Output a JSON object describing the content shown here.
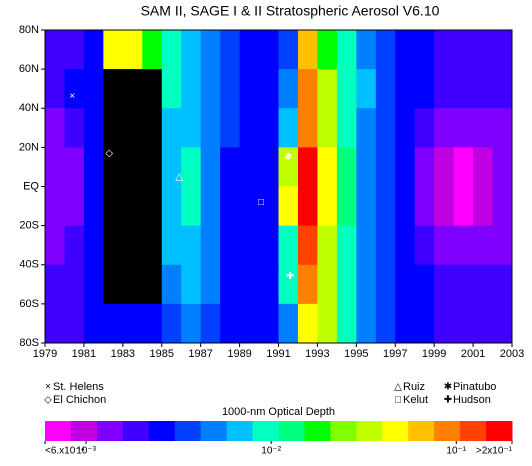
{
  "chart_data": {
    "type": "heatmap",
    "title": "SAM II, SAGE I & II Stratospheric Aerosol V6.10",
    "x": [
      1979,
      1980,
      1981,
      1982,
      1983,
      1984,
      1985,
      1986,
      1987,
      1988,
      1989,
      1990,
      1991,
      1992,
      1993,
      1994,
      1995,
      1996,
      1997,
      1998,
      1999,
      2000,
      2001,
      2002
    ],
    "y": [
      70,
      50,
      30,
      10,
      -10,
      -30,
      -50,
      -70
    ],
    "z": [
      [
        0.002,
        0.002,
        0.003,
        0.04,
        0.05,
        0.02,
        0.008,
        0.006,
        0.005,
        0.004,
        0.003,
        0.003,
        0.004,
        0.06,
        0.02,
        0.008,
        0.005,
        0.004,
        0.003,
        0.003,
        0.002,
        0.002,
        0.002,
        0.002
      ],
      [
        0.002,
        0.0025,
        0.003,
        null,
        null,
        null,
        0.008,
        0.007,
        0.005,
        0.004,
        0.003,
        0.003,
        0.005,
        0.08,
        0.03,
        0.01,
        0.006,
        0.004,
        0.003,
        0.0025,
        0.002,
        0.002,
        0.002,
        0.002
      ],
      [
        0.0012,
        0.002,
        0.003,
        null,
        null,
        null,
        0.007,
        0.006,
        0.005,
        0.0035,
        0.0025,
        0.0025,
        0.006,
        0.1,
        0.03,
        0.01,
        0.005,
        0.004,
        0.003,
        0.002,
        0.0012,
        0.0012,
        0.0015,
        0.0015
      ],
      [
        0.0012,
        0.0015,
        0.0025,
        null,
        null,
        null,
        0.007,
        0.008,
        0.005,
        0.003,
        0.0025,
        0.0025,
        0.03,
        0.15,
        0.04,
        0.012,
        0.005,
        0.0035,
        0.0025,
        0.0015,
        0.0009,
        0.0008,
        0.001,
        0.0012
      ],
      [
        0.0012,
        0.0015,
        0.0025,
        null,
        null,
        null,
        0.007,
        0.008,
        0.005,
        0.003,
        0.0025,
        0.0025,
        0.04,
        0.15,
        0.04,
        0.012,
        0.005,
        0.0035,
        0.0025,
        0.0015,
        0.0009,
        0.0008,
        0.001,
        0.0012
      ],
      [
        0.0015,
        0.002,
        0.003,
        null,
        null,
        null,
        0.006,
        0.007,
        0.005,
        0.003,
        0.0025,
        0.0025,
        0.01,
        0.12,
        0.03,
        0.01,
        0.005,
        0.0035,
        0.0025,
        0.002,
        0.0012,
        0.0012,
        0.0015,
        0.0015
      ],
      [
        0.002,
        0.002,
        0.003,
        null,
        null,
        null,
        0.005,
        0.006,
        0.005,
        0.003,
        0.0025,
        0.003,
        0.008,
        0.1,
        0.03,
        0.01,
        0.005,
        0.004,
        0.003,
        0.0025,
        0.002,
        0.002,
        0.002,
        0.002
      ],
      [
        0.002,
        0.002,
        0.0025,
        0.003,
        0.003,
        0.003,
        0.004,
        0.005,
        0.004,
        0.003,
        0.003,
        0.003,
        0.005,
        0.04,
        0.03,
        0.01,
        0.005,
        0.004,
        0.003,
        0.0025,
        0.002,
        0.002,
        0.002,
        0.002
      ]
    ],
    "no_data_color": "#000000",
    "xlim": [
      1979,
      2003
    ],
    "xticks": [
      1979,
      1981,
      1983,
      1985,
      1987,
      1989,
      1991,
      1993,
      1995,
      1997,
      1999,
      2001,
      2003
    ],
    "ylim": [
      -80,
      80
    ],
    "yticks": [
      {
        "value": 80,
        "label": "80N"
      },
      {
        "value": 60,
        "label": "60N"
      },
      {
        "value": 40,
        "label": "40N"
      },
      {
        "value": 20,
        "label": "20N"
      },
      {
        "value": 0,
        "label": "EQ"
      },
      {
        "value": -20,
        "label": "20S"
      },
      {
        "value": -40,
        "label": "40S"
      },
      {
        "value": -60,
        "label": "60S"
      },
      {
        "value": -80,
        "label": "80S"
      }
    ],
    "annotations": [
      {
        "name": "St. Helens",
        "symbol": "×",
        "x": 1980.4,
        "lat": 46
      },
      {
        "name": "El Chichon",
        "symbol": "◇",
        "x": 1982.3,
        "lat": 17
      },
      {
        "name": "Ruiz",
        "symbol": "△",
        "x": 1985.9,
        "lat": 5
      },
      {
        "name": "Kelut",
        "symbol": "□",
        "x": 1990.1,
        "lat": -8
      },
      {
        "name": "Pinatubo",
        "symbol": "✱",
        "x": 1991.5,
        "lat": 15
      },
      {
        "name": "Hudson",
        "symbol": "✚",
        "x": 1991.6,
        "lat": -46
      }
    ],
    "colorbar": {
      "title": "1000-nm Optical Depth",
      "log": true,
      "lim": [
        0.0006,
        0.2
      ],
      "colors": [
        "#ff00ff",
        "#c000e0",
        "#8000ff",
        "#4000ff",
        "#0000ff",
        "#0040ff",
        "#0080ff",
        "#00c0ff",
        "#00ffc0",
        "#00ff80",
        "#00ff00",
        "#80ff00",
        "#c0ff00",
        "#ffff00",
        "#ffc000",
        "#ff8000",
        "#ff4000",
        "#ff0000"
      ],
      "ticks": [
        {
          "value": 0.0006,
          "label": "<6.x10⁻⁴"
        },
        {
          "value": 0.001,
          "label": "10⁻³"
        },
        {
          "value": 0.01,
          "label": "10⁻²"
        },
        {
          "value": 0.1,
          "label": "10⁻¹"
        },
        {
          "value": 0.2,
          "label": ">2x10⁻¹"
        }
      ]
    }
  }
}
